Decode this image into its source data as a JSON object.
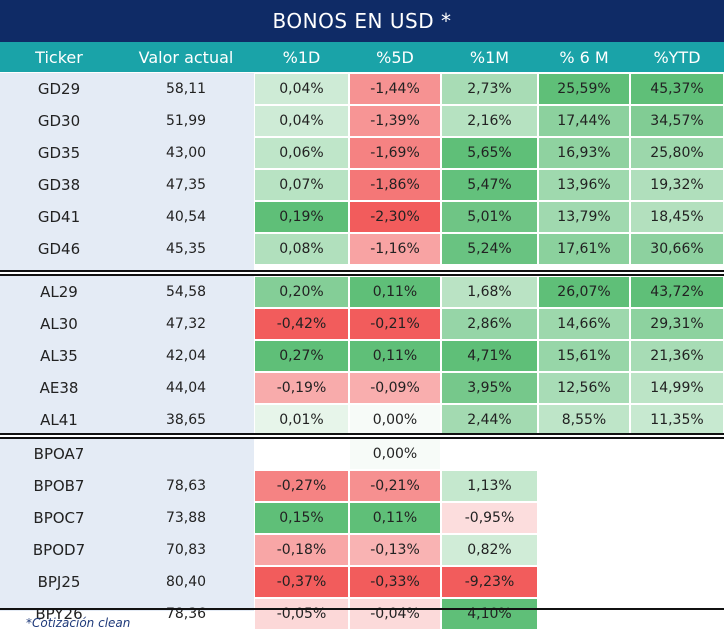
{
  "title": "BONOS EN USD *",
  "columns": [
    "Ticker",
    "Valor actual",
    "%1D",
    "%5D",
    "%1M",
    "% 6 M",
    "%YTD"
  ],
  "footnote": "*Cotización clean",
  "colors": {
    "title_bg": "#0f2b66",
    "header_bg": "#1aa3a8",
    "ticker_bg": "#e4ebf5",
    "positive": "#5fbf78",
    "negative": "#f25c5c"
  },
  "groups": [
    {
      "rows": [
        {
          "ticker": "GD29",
          "valor": "58,11",
          "d1": "0,04%",
          "d5": "-1,44%",
          "m1": "2,73%",
          "m6": "25,59%",
          "ytd": "45,37%"
        },
        {
          "ticker": "GD30",
          "valor": "51,99",
          "d1": "0,04%",
          "d5": "-1,39%",
          "m1": "2,16%",
          "m6": "17,44%",
          "ytd": "34,57%"
        },
        {
          "ticker": "GD35",
          "valor": "43,00",
          "d1": "0,06%",
          "d5": "-1,69%",
          "m1": "5,65%",
          "m6": "16,93%",
          "ytd": "25,80%"
        },
        {
          "ticker": "GD38",
          "valor": "47,35",
          "d1": "0,07%",
          "d5": "-1,86%",
          "m1": "5,47%",
          "m6": "13,96%",
          "ytd": "19,32%"
        },
        {
          "ticker": "GD41",
          "valor": "40,54",
          "d1": "0,19%",
          "d5": "-2,30%",
          "m1": "5,01%",
          "m6": "13,79%",
          "ytd": "18,45%"
        },
        {
          "ticker": "GD46",
          "valor": "45,35",
          "d1": "0,08%",
          "d5": "-1,16%",
          "m1": "5,24%",
          "m6": "17,61%",
          "ytd": "30,66%"
        }
      ]
    },
    {
      "rows": [
        {
          "ticker": "AL29",
          "valor": "54,58",
          "d1": "0,20%",
          "d5": "0,11%",
          "m1": "1,68%",
          "m6": "26,07%",
          "ytd": "43,72%"
        },
        {
          "ticker": "AL30",
          "valor": "47,32",
          "d1": "-0,42%",
          "d5": "-0,21%",
          "m1": "2,86%",
          "m6": "14,66%",
          "ytd": "29,31%"
        },
        {
          "ticker": "AL35",
          "valor": "42,04",
          "d1": "0,27%",
          "d5": "0,11%",
          "m1": "4,71%",
          "m6": "15,61%",
          "ytd": "21,36%"
        },
        {
          "ticker": "AE38",
          "valor": "44,04",
          "d1": "-0,19%",
          "d5": "-0,09%",
          "m1": "3,95%",
          "m6": "12,56%",
          "ytd": "14,99%"
        },
        {
          "ticker": "AL41",
          "valor": "38,65",
          "d1": "0,01%",
          "d5": "0,00%",
          "m1": "2,44%",
          "m6": "8,55%",
          "ytd": "11,35%"
        }
      ]
    },
    {
      "rows": [
        {
          "ticker": "BPOA7",
          "valor": "",
          "d1": "",
          "d5": "0,00%",
          "m1": "",
          "m6": "",
          "ytd": ""
        },
        {
          "ticker": "BPOB7",
          "valor": "78,63",
          "d1": "-0,27%",
          "d5": "-0,21%",
          "m1": "1,13%",
          "m6": "",
          "ytd": ""
        },
        {
          "ticker": "BPOC7",
          "valor": "73,88",
          "d1": "0,15%",
          "d5": "0,11%",
          "m1": "-0,95%",
          "m6": "",
          "ytd": ""
        },
        {
          "ticker": "BPOD7",
          "valor": "70,83",
          "d1": "-0,18%",
          "d5": "-0,13%",
          "m1": "0,82%",
          "m6": "",
          "ytd": ""
        },
        {
          "ticker": "BPJ25",
          "valor": "80,40",
          "d1": "-0,37%",
          "d5": "-0,33%",
          "m1": "-9,23%",
          "m6": "",
          "ytd": ""
        },
        {
          "ticker": "BPY26",
          "valor": "78,36",
          "d1": "-0,05%",
          "d5": "-0,04%",
          "m1": "4,10%",
          "m6": "",
          "ytd": ""
        }
      ]
    }
  ]
}
